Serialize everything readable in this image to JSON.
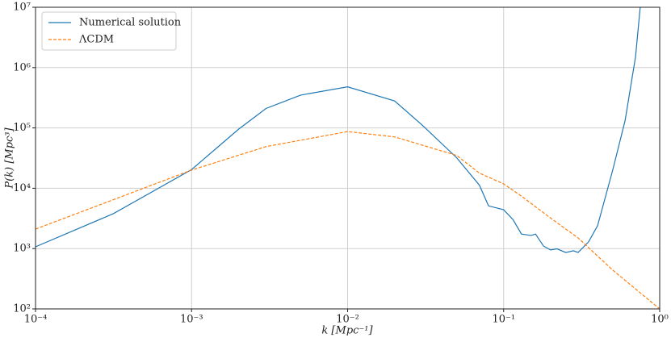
{
  "chart_data": {
    "type": "line",
    "xlabel": "k [Mpc⁻¹]",
    "ylabel": "P(k) [Mpc³]",
    "xscale": "log",
    "yscale": "log",
    "grid": true,
    "legend": "upper left",
    "xlim": [
      0.0001,
      1
    ],
    "ylim": [
      100,
      10000000
    ],
    "xticks": [
      {
        "value": 0.0001,
        "label": "10⁻⁴"
      },
      {
        "value": 0.001,
        "label": "10⁻³"
      },
      {
        "value": 0.01,
        "label": "10⁻²"
      },
      {
        "value": 0.1,
        "label": "10⁻¹"
      },
      {
        "value": 1,
        "label": "10⁰"
      }
    ],
    "yticks": [
      {
        "value": 100,
        "label": "10²"
      },
      {
        "value": 1000,
        "label": "10³"
      },
      {
        "value": 10000,
        "label": "10⁴"
      },
      {
        "value": 100000,
        "label": "10⁵"
      },
      {
        "value": 1000000,
        "label": "10⁶"
      },
      {
        "value": 10000000,
        "label": "10⁷"
      }
    ],
    "series": [
      {
        "name": "Numerical solution",
        "color": "#1f77b4",
        "linestyle": "solid",
        "x": [
          0.0001,
          0.000316,
          0.001,
          0.002,
          0.003,
          0.005,
          0.01,
          0.02,
          0.03,
          0.05,
          0.07,
          0.08,
          0.1,
          0.115,
          0.13,
          0.15,
          0.16,
          0.18,
          0.2,
          0.22,
          0.25,
          0.28,
          0.3,
          0.35,
          0.4,
          0.5,
          0.6,
          0.7,
          0.75
        ],
        "values": [
          1070,
          3800,
          20400,
          95000,
          210000,
          350000,
          480000,
          280000,
          112000,
          32000,
          11200,
          5100,
          4400,
          3000,
          1740,
          1650,
          1740,
          1100,
          950,
          990,
          860,
          920,
          860,
          1290,
          2400,
          20000,
          132000,
          1500000,
          10000000
        ]
      },
      {
        "name": "ΛCDM",
        "color": "#ff7f0e",
        "linestyle": "dashed",
        "x": [
          0.0001,
          0.001,
          0.003,
          0.01,
          0.02,
          0.05,
          0.07,
          0.1,
          0.13,
          0.2,
          0.3,
          0.5,
          1
        ],
        "values": [
          2100,
          20000,
          49000,
          87000,
          71000,
          35000,
          17800,
          11800,
          7400,
          3200,
          1500,
          440,
          100
        ]
      }
    ]
  }
}
